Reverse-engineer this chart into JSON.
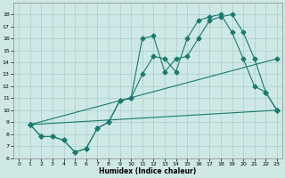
{
  "title": "",
  "xlabel": "Humidex (Indice chaleur)",
  "background_color": "#cde8e5",
  "grid_color": "#aacfcc",
  "line_color": "#1a7a6e",
  "xlim": [
    -0.5,
    23.5
  ],
  "ylim": [
    6,
    19
  ],
  "xticks": [
    0,
    1,
    2,
    3,
    4,
    5,
    6,
    7,
    8,
    9,
    10,
    11,
    12,
    13,
    14,
    15,
    16,
    17,
    18,
    19,
    20,
    21,
    22,
    23
  ],
  "yticks": [
    6,
    7,
    8,
    9,
    10,
    11,
    12,
    13,
    14,
    15,
    16,
    17,
    18
  ],
  "line1_x": [
    1,
    2,
    3,
    4,
    5,
    6,
    7,
    8,
    9,
    10,
    11,
    12,
    13,
    14,
    15,
    16,
    17,
    18,
    19,
    20,
    21,
    22,
    23
  ],
  "line1_y": [
    8.8,
    7.8,
    7.8,
    7.5,
    6.5,
    6.8,
    8.5,
    9.0,
    10.8,
    11.0,
    16.0,
    16.2,
    13.2,
    14.3,
    14.5,
    16.0,
    17.5,
    17.8,
    18.0,
    16.5,
    14.3,
    11.5,
    10.0
  ],
  "line2_x": [
    1,
    2,
    3,
    4,
    5,
    6,
    7,
    8,
    9,
    10,
    11,
    12,
    13,
    14,
    15,
    16,
    17,
    18,
    19,
    20,
    21,
    22,
    23
  ],
  "line2_y": [
    8.8,
    7.8,
    7.8,
    7.5,
    6.5,
    6.8,
    8.5,
    9.0,
    10.8,
    11.0,
    13.0,
    14.5,
    14.3,
    13.2,
    16.0,
    17.5,
    17.8,
    18.0,
    16.5,
    14.3,
    12.0,
    11.5,
    10.0
  ],
  "line3_x": [
    1,
    23
  ],
  "line3_y": [
    8.8,
    14.3
  ],
  "line4_x": [
    1,
    23
  ],
  "line4_y": [
    8.8,
    10.0
  ]
}
